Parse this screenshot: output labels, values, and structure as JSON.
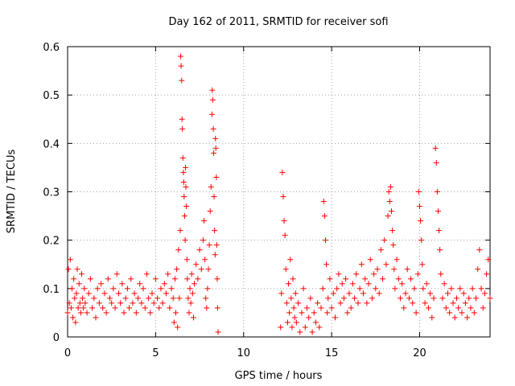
{
  "chart_data": {
    "type": "scatter",
    "title": "Day 162 of 2011, SRMTID for receiver sofi",
    "xlabel": "GPS time / hours",
    "ylabel": "SRMTID / TECUs",
    "xlim": [
      0,
      24
    ],
    "ylim": [
      0,
      0.6
    ],
    "xticks": [
      0,
      5,
      10,
      15,
      20
    ],
    "yticks": [
      0,
      0.1,
      0.2,
      0.3,
      0.4,
      0.5,
      0.6
    ],
    "grid": true,
    "marker": "+",
    "color": "#ff0000",
    "series": [
      {
        "name": "SRMTID",
        "points": [
          [
            0.0,
            0.05
          ],
          [
            0.05,
            0.14
          ],
          [
            0.1,
            0.07
          ],
          [
            0.15,
            0.16
          ],
          [
            0.2,
            0.06
          ],
          [
            0.25,
            0.1
          ],
          [
            0.3,
            0.04
          ],
          [
            0.35,
            0.12
          ],
          [
            0.4,
            0.08
          ],
          [
            0.45,
            0.03
          ],
          [
            0.5,
            0.09
          ],
          [
            0.55,
            0.14
          ],
          [
            0.6,
            0.06
          ],
          [
            0.65,
            0.11
          ],
          [
            0.7,
            0.07
          ],
          [
            0.75,
            0.05
          ],
          [
            0.8,
            0.13
          ],
          [
            0.85,
            0.08
          ],
          [
            0.9,
            0.06
          ],
          [
            0.95,
            0.1
          ],
          [
            1.0,
            0.07
          ],
          [
            1.1,
            0.05
          ],
          [
            1.2,
            0.09
          ],
          [
            1.3,
            0.12
          ],
          [
            1.4,
            0.06
          ],
          [
            1.5,
            0.08
          ],
          [
            1.6,
            0.04
          ],
          [
            1.7,
            0.1
          ],
          [
            1.8,
            0.07
          ],
          [
            1.9,
            0.11
          ],
          [
            2.0,
            0.06
          ],
          [
            2.1,
            0.09
          ],
          [
            2.2,
            0.05
          ],
          [
            2.3,
            0.12
          ],
          [
            2.4,
            0.08
          ],
          [
            2.5,
            0.07
          ],
          [
            2.6,
            0.1
          ],
          [
            2.7,
            0.06
          ],
          [
            2.8,
            0.13
          ],
          [
            2.9,
            0.09
          ],
          [
            3.0,
            0.07
          ],
          [
            3.1,
            0.11
          ],
          [
            3.2,
            0.05
          ],
          [
            3.3,
            0.08
          ],
          [
            3.4,
            0.1
          ],
          [
            3.5,
            0.06
          ],
          [
            3.6,
            0.12
          ],
          [
            3.7,
            0.07
          ],
          [
            3.8,
            0.09
          ],
          [
            3.9,
            0.05
          ],
          [
            4.0,
            0.08
          ],
          [
            4.1,
            0.11
          ],
          [
            4.2,
            0.07
          ],
          [
            4.3,
            0.1
          ],
          [
            4.4,
            0.06
          ],
          [
            4.5,
            0.13
          ],
          [
            4.6,
            0.08
          ],
          [
            4.7,
            0.05
          ],
          [
            4.8,
            0.09
          ],
          [
            4.9,
            0.07
          ],
          [
            5.0,
            0.12
          ],
          [
            5.1,
            0.08
          ],
          [
            5.2,
            0.06
          ],
          [
            5.3,
            0.1
          ],
          [
            5.4,
            0.07
          ],
          [
            5.5,
            0.11
          ],
          [
            5.6,
            0.09
          ],
          [
            5.7,
            0.13
          ],
          [
            5.8,
            0.06
          ],
          [
            5.9,
            0.1
          ],
          [
            6.0,
            0.08
          ],
          [
            6.05,
            0.03
          ],
          [
            6.1,
            0.12
          ],
          [
            6.15,
            0.05
          ],
          [
            6.2,
            0.14
          ],
          [
            6.25,
            0.02
          ],
          [
            6.3,
            0.18
          ],
          [
            6.35,
            0.08
          ],
          [
            6.4,
            0.22
          ],
          [
            6.42,
            0.58
          ],
          [
            6.45,
            0.56
          ],
          [
            6.48,
            0.53
          ],
          [
            6.5,
            0.45
          ],
          [
            6.52,
            0.43
          ],
          [
            6.55,
            0.37
          ],
          [
            6.58,
            0.34
          ],
          [
            6.6,
            0.32
          ],
          [
            6.62,
            0.29
          ],
          [
            6.65,
            0.25
          ],
          [
            6.68,
            0.2
          ],
          [
            6.7,
            0.35
          ],
          [
            6.72,
            0.31
          ],
          [
            6.75,
            0.27
          ],
          [
            6.78,
            0.16
          ],
          [
            6.8,
            0.12
          ],
          [
            6.85,
            0.08
          ],
          [
            6.9,
            0.05
          ],
          [
            6.95,
            0.1
          ],
          [
            7.0,
            0.07
          ],
          [
            7.05,
            0.13
          ],
          [
            7.1,
            0.09
          ],
          [
            7.15,
            0.04
          ],
          [
            7.2,
            0.11
          ],
          [
            7.3,
            0.15
          ],
          [
            7.4,
            0.12
          ],
          [
            7.5,
            0.18
          ],
          [
            7.6,
            0.14
          ],
          [
            7.7,
            0.2
          ],
          [
            7.75,
            0.24
          ],
          [
            7.8,
            0.16
          ],
          [
            7.85,
            0.08
          ],
          [
            7.9,
            0.06
          ],
          [
            7.95,
            0.1
          ],
          [
            8.0,
            0.14
          ],
          [
            8.05,
            0.19
          ],
          [
            8.1,
            0.26
          ],
          [
            8.15,
            0.31
          ],
          [
            8.2,
            0.46
          ],
          [
            8.22,
            0.51
          ],
          [
            8.25,
            0.49
          ],
          [
            8.28,
            0.43
          ],
          [
            8.3,
            0.38
          ],
          [
            8.32,
            0.29
          ],
          [
            8.35,
            0.22
          ],
          [
            8.38,
            0.17
          ],
          [
            8.4,
            0.41
          ],
          [
            8.42,
            0.39
          ],
          [
            8.45,
            0.33
          ],
          [
            8.47,
            0.19
          ],
          [
            8.5,
            0.12
          ],
          [
            8.52,
            0.06
          ],
          [
            8.55,
            0.01
          ],
          [
            12.1,
            0.02
          ],
          [
            12.15,
            0.09
          ],
          [
            12.2,
            0.34
          ],
          [
            12.25,
            0.29
          ],
          [
            12.3,
            0.24
          ],
          [
            12.35,
            0.21
          ],
          [
            12.4,
            0.14
          ],
          [
            12.45,
            0.07
          ],
          [
            12.5,
            0.03
          ],
          [
            12.55,
            0.11
          ],
          [
            12.6,
            0.05
          ],
          [
            12.65,
            0.16
          ],
          [
            12.7,
            0.08
          ],
          [
            12.75,
            0.02
          ],
          [
            12.8,
            0.12
          ],
          [
            12.85,
            0.06
          ],
          [
            12.9,
            0.04
          ],
          [
            12.95,
            0.09
          ],
          [
            13.0,
            0.03
          ],
          [
            13.1,
            0.07
          ],
          [
            13.2,
            0.01
          ],
          [
            13.3,
            0.05
          ],
          [
            13.4,
            0.1
          ],
          [
            13.5,
            0.02
          ],
          [
            13.6,
            0.06
          ],
          [
            13.7,
            0.04
          ],
          [
            13.8,
            0.08
          ],
          [
            13.9,
            0.01
          ],
          [
            14.0,
            0.05
          ],
          [
            14.1,
            0.03
          ],
          [
            14.2,
            0.07
          ],
          [
            14.3,
            0.02
          ],
          [
            14.4,
            0.06
          ],
          [
            14.5,
            0.1
          ],
          [
            14.55,
            0.28
          ],
          [
            14.6,
            0.25
          ],
          [
            14.65,
            0.2
          ],
          [
            14.7,
            0.15
          ],
          [
            14.75,
            0.05
          ],
          [
            14.8,
            0.08
          ],
          [
            14.9,
            0.12
          ],
          [
            15.0,
            0.06
          ],
          [
            15.1,
            0.09
          ],
          [
            15.2,
            0.04
          ],
          [
            15.3,
            0.1
          ],
          [
            15.4,
            0.13
          ],
          [
            15.5,
            0.07
          ],
          [
            15.6,
            0.11
          ],
          [
            15.7,
            0.08
          ],
          [
            15.8,
            0.12
          ],
          [
            15.9,
            0.05
          ],
          [
            16.0,
            0.09
          ],
          [
            16.1,
            0.06
          ],
          [
            16.2,
            0.11
          ],
          [
            16.3,
            0.08
          ],
          [
            16.4,
            0.13
          ],
          [
            16.5,
            0.07
          ],
          [
            16.6,
            0.1
          ],
          [
            16.7,
            0.15
          ],
          [
            16.8,
            0.09
          ],
          [
            16.9,
            0.12
          ],
          [
            17.0,
            0.07
          ],
          [
            17.1,
            0.11
          ],
          [
            17.2,
            0.16
          ],
          [
            17.3,
            0.08
          ],
          [
            17.4,
            0.13
          ],
          [
            17.5,
            0.1
          ],
          [
            17.6,
            0.14
          ],
          [
            17.7,
            0.09
          ],
          [
            17.8,
            0.18
          ],
          [
            17.9,
            0.12
          ],
          [
            18.0,
            0.2
          ],
          [
            18.1,
            0.15
          ],
          [
            18.2,
            0.25
          ],
          [
            18.25,
            0.3
          ],
          [
            18.3,
            0.28
          ],
          [
            18.35,
            0.31
          ],
          [
            18.4,
            0.26
          ],
          [
            18.45,
            0.22
          ],
          [
            18.5,
            0.19
          ],
          [
            18.55,
            0.14
          ],
          [
            18.6,
            0.1
          ],
          [
            18.7,
            0.16
          ],
          [
            18.8,
            0.12
          ],
          [
            18.9,
            0.08
          ],
          [
            19.0,
            0.11
          ],
          [
            19.1,
            0.06
          ],
          [
            19.2,
            0.09
          ],
          [
            19.3,
            0.14
          ],
          [
            19.4,
            0.08
          ],
          [
            19.5,
            0.12
          ],
          [
            19.6,
            0.07
          ],
          [
            19.7,
            0.1
          ],
          [
            19.8,
            0.05
          ],
          [
            19.9,
            0.13
          ],
          [
            19.95,
            0.3
          ],
          [
            20.0,
            0.27
          ],
          [
            20.05,
            0.24
          ],
          [
            20.1,
            0.2
          ],
          [
            20.15,
            0.15
          ],
          [
            20.2,
            0.1
          ],
          [
            20.3,
            0.07
          ],
          [
            20.4,
            0.11
          ],
          [
            20.5,
            0.06
          ],
          [
            20.6,
            0.09
          ],
          [
            20.7,
            0.04
          ],
          [
            20.8,
            0.08
          ],
          [
            20.9,
            0.39
          ],
          [
            20.95,
            0.36
          ],
          [
            21.0,
            0.3
          ],
          [
            21.05,
            0.26
          ],
          [
            21.1,
            0.22
          ],
          [
            21.15,
            0.18
          ],
          [
            21.2,
            0.13
          ],
          [
            21.3,
            0.08
          ],
          [
            21.4,
            0.11
          ],
          [
            21.5,
            0.06
          ],
          [
            21.6,
            0.09
          ],
          [
            21.7,
            0.05
          ],
          [
            21.8,
            0.1
          ],
          [
            21.9,
            0.07
          ],
          [
            22.0,
            0.04
          ],
          [
            22.1,
            0.08
          ],
          [
            22.2,
            0.06
          ],
          [
            22.3,
            0.1
          ],
          [
            22.4,
            0.05
          ],
          [
            22.5,
            0.09
          ],
          [
            22.6,
            0.07
          ],
          [
            22.7,
            0.04
          ],
          [
            22.8,
            0.08
          ],
          [
            22.9,
            0.06
          ],
          [
            23.0,
            0.1
          ],
          [
            23.1,
            0.05
          ],
          [
            23.2,
            0.08
          ],
          [
            23.3,
            0.14
          ],
          [
            23.4,
            0.18
          ],
          [
            23.5,
            0.1
          ],
          [
            23.6,
            0.06
          ],
          [
            23.7,
            0.09
          ],
          [
            23.8,
            0.13
          ],
          [
            23.9,
            0.16
          ],
          [
            24.0,
            0.08
          ]
        ]
      }
    ]
  }
}
